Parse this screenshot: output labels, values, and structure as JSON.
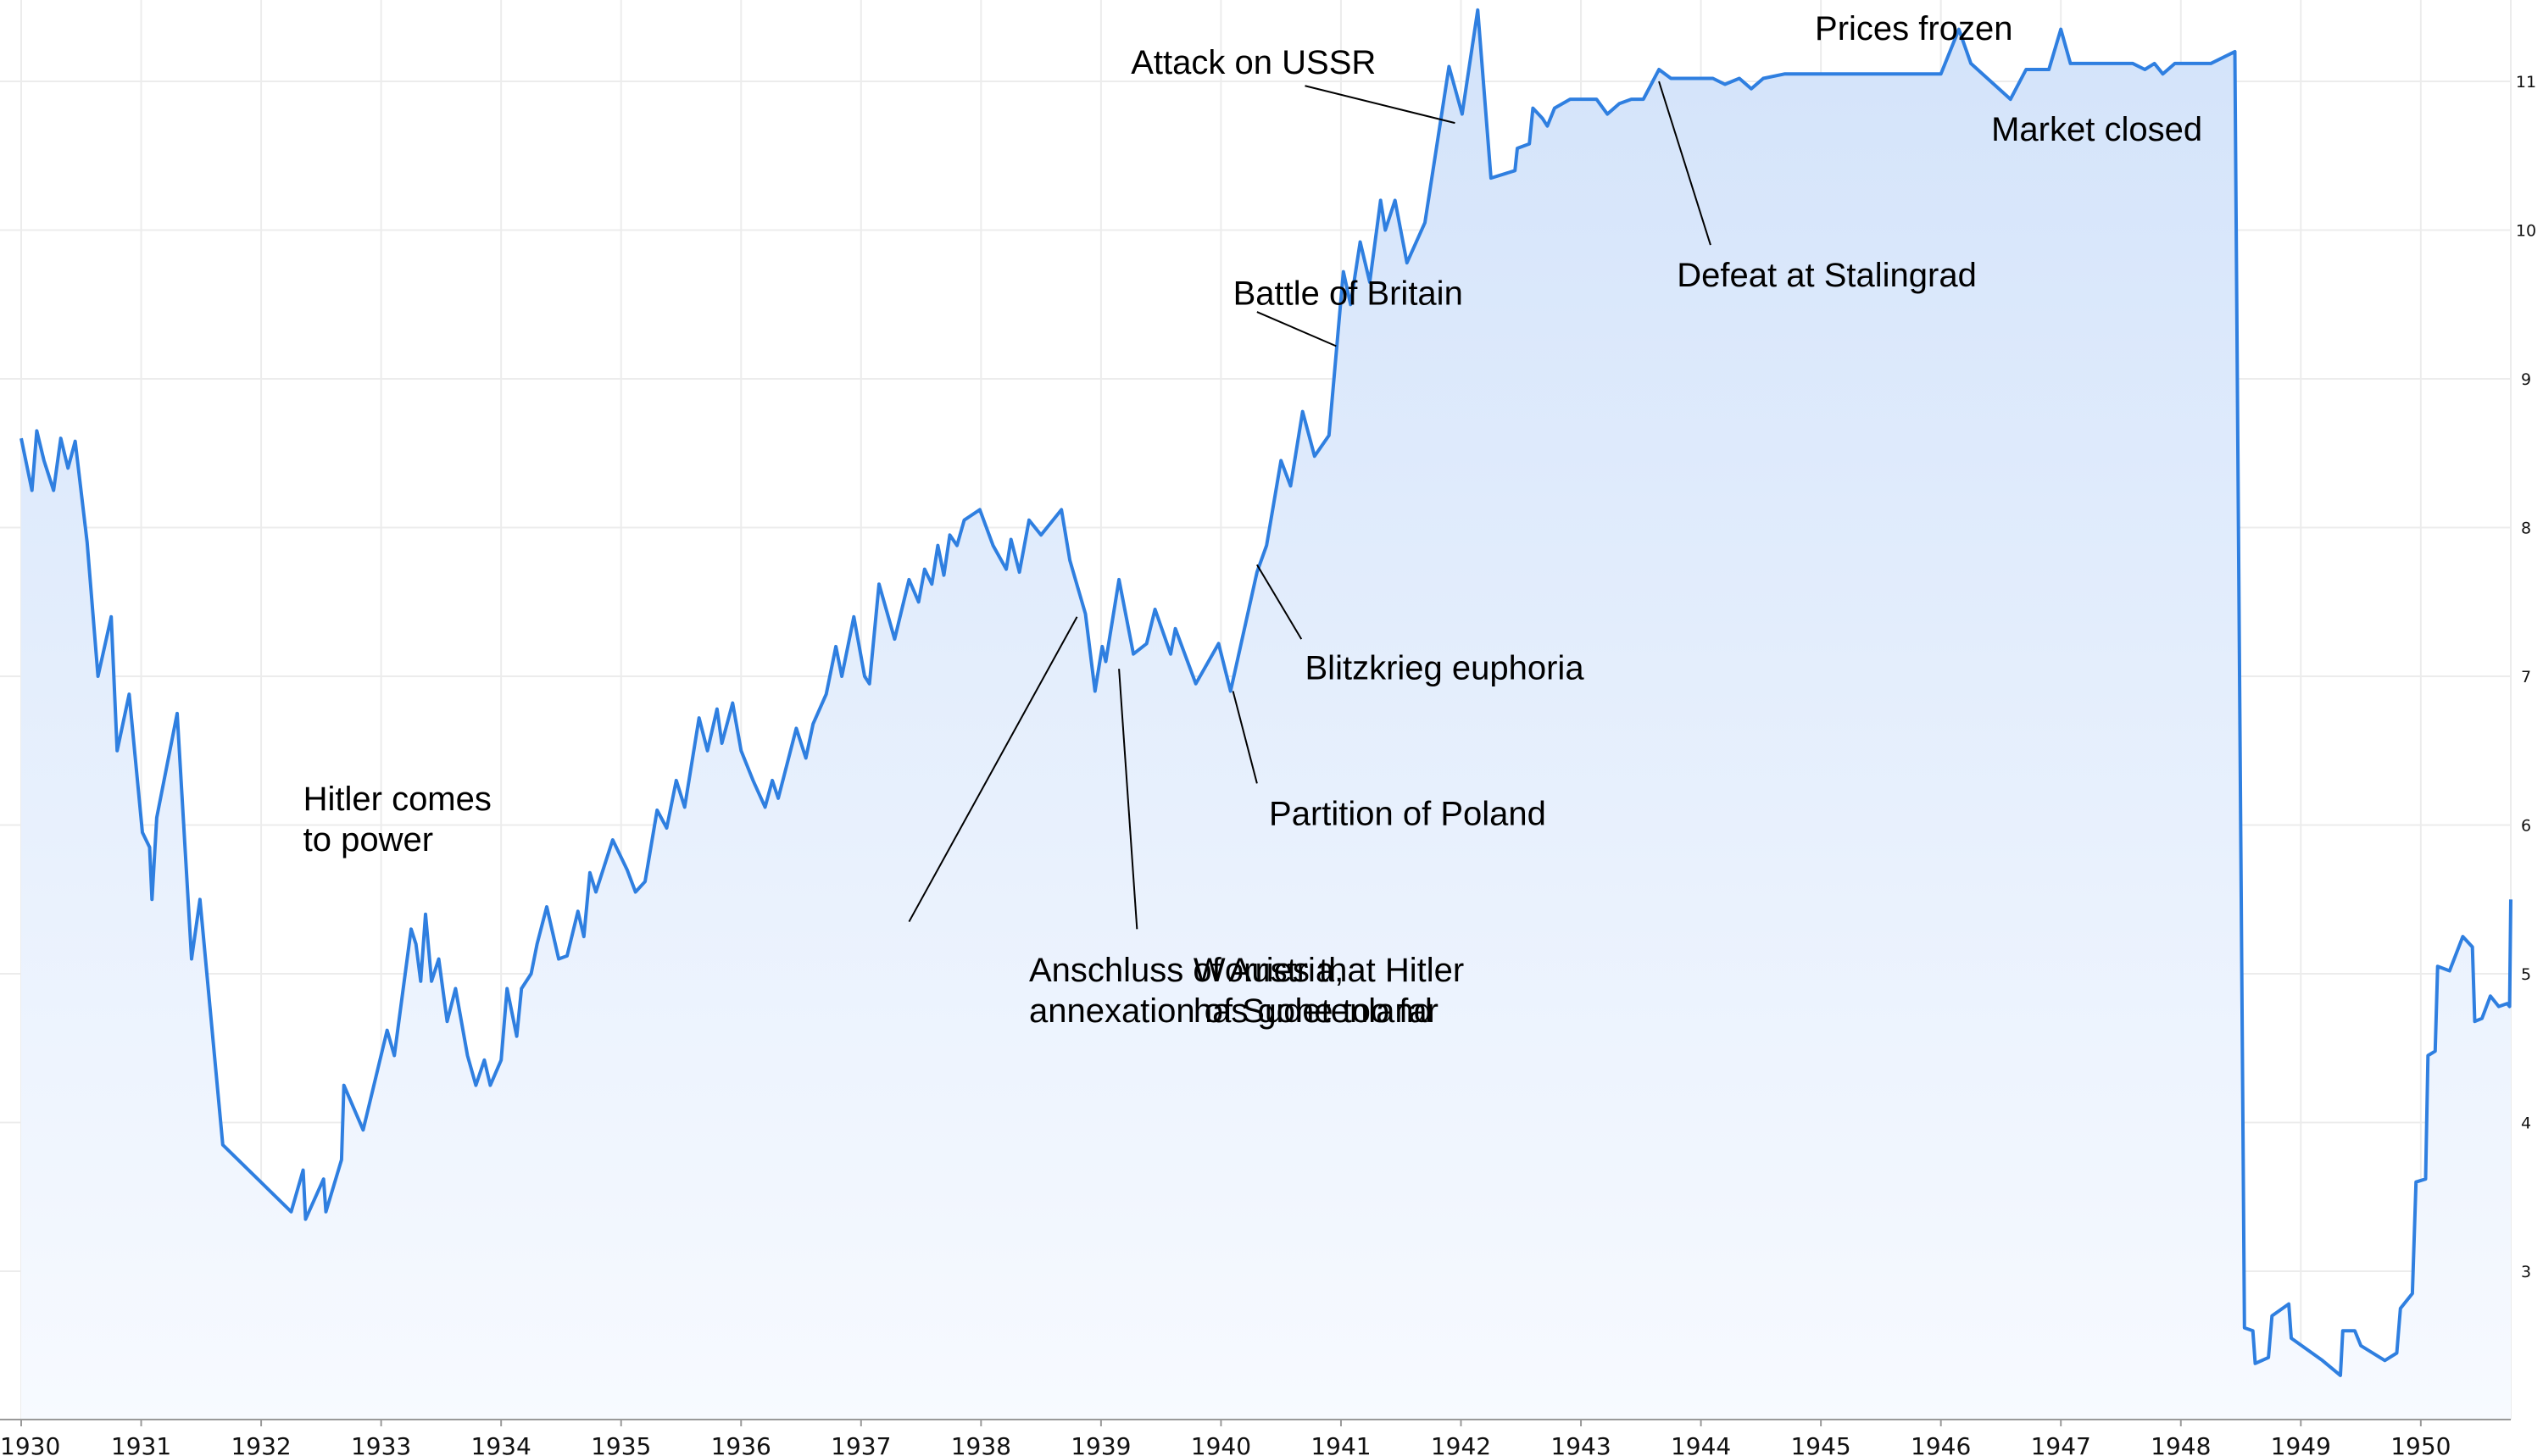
{
  "chart_data": {
    "type": "area",
    "title": "",
    "xlabel": "",
    "ylabel": "",
    "xlim": [
      1930.0,
      1950.75
    ],
    "ylim": [
      2.0,
      11.6
    ],
    "grid": true,
    "line_color": "#2f7fe0",
    "fill_color": "#d6e6fb",
    "x_ticks": [
      "1930",
      "1931",
      "1932",
      "1933",
      "1934",
      "1935",
      "1936",
      "1937",
      "1938",
      "1939",
      "1940",
      "1941",
      "1942",
      "1943",
      "1944",
      "1945",
      "1946",
      "1947",
      "1948",
      "1949",
      "1950"
    ],
    "y_ticks": [
      "3",
      "4",
      "5",
      "6",
      "7",
      "8",
      "9",
      "10",
      "11"
    ],
    "series": [
      {
        "name": "",
        "points": [
          [
            1930.0,
            8.6
          ],
          [
            1930.09,
            8.25
          ],
          [
            1930.13,
            8.65
          ],
          [
            1930.19,
            8.45
          ],
          [
            1930.27,
            8.25
          ],
          [
            1930.33,
            8.6
          ],
          [
            1930.39,
            8.4
          ],
          [
            1930.45,
            8.58
          ],
          [
            1930.55,
            7.9
          ],
          [
            1930.64,
            7.0
          ],
          [
            1930.75,
            7.4
          ],
          [
            1930.8,
            6.5
          ],
          [
            1930.9,
            6.88
          ],
          [
            1931.01,
            5.95
          ],
          [
            1931.07,
            5.85
          ],
          [
            1931.09,
            5.5
          ],
          [
            1931.13,
            6.05
          ],
          [
            1931.3,
            6.75
          ],
          [
            1931.42,
            5.1
          ],
          [
            1931.49,
            5.5
          ],
          [
            1931.68,
            3.85
          ],
          [
            1932.25,
            3.4
          ],
          [
            1932.35,
            3.68
          ],
          [
            1932.37,
            3.35
          ],
          [
            1932.52,
            3.62
          ],
          [
            1932.54,
            3.4
          ],
          [
            1932.67,
            3.75
          ],
          [
            1932.69,
            4.25
          ],
          [
            1932.85,
            3.95
          ],
          [
            1933.05,
            4.62
          ],
          [
            1933.11,
            4.45
          ],
          [
            1933.25,
            5.3
          ],
          [
            1933.29,
            5.2
          ],
          [
            1933.33,
            4.95
          ],
          [
            1933.37,
            5.4
          ],
          [
            1933.42,
            4.95
          ],
          [
            1933.48,
            5.1
          ],
          [
            1933.55,
            4.68
          ],
          [
            1933.62,
            4.9
          ],
          [
            1933.72,
            4.45
          ],
          [
            1933.79,
            4.25
          ],
          [
            1933.86,
            4.42
          ],
          [
            1933.91,
            4.25
          ],
          [
            1934.0,
            4.42
          ],
          [
            1934.05,
            4.9
          ],
          [
            1934.13,
            4.58
          ],
          [
            1934.17,
            4.9
          ],
          [
            1934.25,
            5.0
          ],
          [
            1934.3,
            5.2
          ],
          [
            1934.38,
            5.45
          ],
          [
            1934.48,
            5.1
          ],
          [
            1934.55,
            5.12
          ],
          [
            1934.64,
            5.42
          ],
          [
            1934.69,
            5.25
          ],
          [
            1934.74,
            5.68
          ],
          [
            1934.79,
            5.55
          ],
          [
            1934.93,
            5.9
          ],
          [
            1935.05,
            5.7
          ],
          [
            1935.12,
            5.55
          ],
          [
            1935.2,
            5.62
          ],
          [
            1935.3,
            6.1
          ],
          [
            1935.38,
            5.98
          ],
          [
            1935.46,
            6.3
          ],
          [
            1935.53,
            6.12
          ],
          [
            1935.65,
            6.72
          ],
          [
            1935.72,
            6.5
          ],
          [
            1935.8,
            6.78
          ],
          [
            1935.84,
            6.55
          ],
          [
            1935.93,
            6.82
          ],
          [
            1936.0,
            6.5
          ],
          [
            1936.1,
            6.3
          ],
          [
            1936.2,
            6.12
          ],
          [
            1936.26,
            6.3
          ],
          [
            1936.31,
            6.18
          ],
          [
            1936.46,
            6.65
          ],
          [
            1936.54,
            6.45
          ],
          [
            1936.6,
            6.68
          ],
          [
            1936.71,
            6.88
          ],
          [
            1936.79,
            7.2
          ],
          [
            1936.84,
            7.0
          ],
          [
            1936.94,
            7.4
          ],
          [
            1937.03,
            7.0
          ],
          [
            1937.07,
            6.95
          ],
          [
            1937.15,
            7.62
          ],
          [
            1937.28,
            7.25
          ],
          [
            1937.4,
            7.65
          ],
          [
            1937.48,
            7.5
          ],
          [
            1937.53,
            7.72
          ],
          [
            1937.59,
            7.62
          ],
          [
            1937.64,
            7.88
          ],
          [
            1937.69,
            7.68
          ],
          [
            1937.74,
            7.95
          ],
          [
            1937.8,
            7.88
          ],
          [
            1937.86,
            8.05
          ],
          [
            1937.99,
            8.12
          ],
          [
            1938.1,
            7.88
          ],
          [
            1938.21,
            7.72
          ],
          [
            1938.25,
            7.92
          ],
          [
            1938.32,
            7.7
          ],
          [
            1938.4,
            8.05
          ],
          [
            1938.5,
            7.95
          ],
          [
            1938.67,
            8.12
          ],
          [
            1938.74,
            7.78
          ],
          [
            1938.87,
            7.42
          ],
          [
            1938.95,
            6.9
          ],
          [
            1939.01,
            7.2
          ],
          [
            1939.04,
            7.1
          ],
          [
            1939.15,
            7.65
          ],
          [
            1939.27,
            7.15
          ],
          [
            1939.38,
            7.22
          ],
          [
            1939.45,
            7.45
          ],
          [
            1939.58,
            7.15
          ],
          [
            1939.62,
            7.32
          ],
          [
            1939.79,
            6.95
          ],
          [
            1939.98,
            7.22
          ],
          [
            1940.08,
            6.9
          ],
          [
            1940.3,
            7.7
          ],
          [
            1940.38,
            7.88
          ],
          [
            1940.5,
            8.45
          ],
          [
            1940.58,
            8.28
          ],
          [
            1940.68,
            8.78
          ],
          [
            1940.78,
            8.48
          ],
          [
            1940.9,
            8.62
          ],
          [
            1941.02,
            9.72
          ],
          [
            1941.08,
            9.5
          ],
          [
            1941.16,
            9.92
          ],
          [
            1941.24,
            9.65
          ],
          [
            1941.33,
            10.2
          ],
          [
            1941.37,
            10.0
          ],
          [
            1941.45,
            10.2
          ],
          [
            1941.55,
            9.78
          ],
          [
            1941.7,
            10.05
          ],
          [
            1941.9,
            11.1
          ],
          [
            1942.01,
            10.78
          ],
          [
            1942.14,
            11.48
          ],
          [
            1942.25,
            10.35
          ],
          [
            1942.45,
            10.4
          ],
          [
            1942.47,
            10.55
          ],
          [
            1942.57,
            10.58
          ],
          [
            1942.6,
            10.82
          ],
          [
            1942.68,
            10.75
          ],
          [
            1942.72,
            10.7
          ],
          [
            1942.78,
            10.82
          ],
          [
            1942.91,
            10.88
          ],
          [
            1943.13,
            10.88
          ],
          [
            1943.22,
            10.78
          ],
          [
            1943.32,
            10.85
          ],
          [
            1943.42,
            10.88
          ],
          [
            1943.52,
            10.88
          ],
          [
            1943.65,
            11.08
          ],
          [
            1943.75,
            11.02
          ],
          [
            1944.1,
            11.02
          ],
          [
            1944.2,
            10.98
          ],
          [
            1944.32,
            11.02
          ],
          [
            1944.42,
            10.95
          ],
          [
            1944.52,
            11.02
          ],
          [
            1944.7,
            11.05
          ],
          [
            1946.0,
            11.05
          ],
          [
            1946.15,
            11.35
          ],
          [
            1946.25,
            11.12
          ],
          [
            1946.58,
            10.88
          ],
          [
            1946.71,
            11.08
          ],
          [
            1946.9,
            11.08
          ],
          [
            1947.0,
            11.35
          ],
          [
            1947.08,
            11.12
          ],
          [
            1947.6,
            11.12
          ],
          [
            1947.7,
            11.08
          ],
          [
            1947.78,
            11.12
          ],
          [
            1947.85,
            11.05
          ],
          [
            1947.95,
            11.12
          ],
          [
            1948.25,
            11.12
          ],
          [
            1948.45,
            11.2
          ],
          [
            1948.53,
            2.62
          ],
          [
            1948.6,
            2.6
          ],
          [
            1948.62,
            2.38
          ],
          [
            1948.73,
            2.42
          ],
          [
            1948.76,
            2.7
          ],
          [
            1948.9,
            2.78
          ],
          [
            1948.92,
            2.55
          ],
          [
            1949.18,
            2.4
          ],
          [
            1949.33,
            2.3
          ],
          [
            1949.35,
            2.6
          ],
          [
            1949.45,
            2.6
          ],
          [
            1949.5,
            2.5
          ],
          [
            1949.7,
            2.4
          ],
          [
            1949.8,
            2.45
          ],
          [
            1949.83,
            2.75
          ],
          [
            1949.93,
            2.85
          ],
          [
            1949.96,
            3.6
          ],
          [
            1950.04,
            3.62
          ],
          [
            1950.06,
            4.45
          ],
          [
            1950.12,
            4.48
          ],
          [
            1950.14,
            5.05
          ],
          [
            1950.24,
            5.02
          ],
          [
            1950.35,
            5.25
          ],
          [
            1950.43,
            5.18
          ],
          [
            1950.45,
            4.68
          ],
          [
            1950.51,
            4.7
          ],
          [
            1950.58,
            4.85
          ],
          [
            1950.65,
            4.78
          ],
          [
            1950.72,
            4.8
          ],
          [
            1950.74,
            4.78
          ],
          [
            1950.75,
            5.5
          ]
        ]
      }
    ],
    "annotations": [
      {
        "lines": [
          "Hitler comes",
          "to power"
        ],
        "anchor": [
          1932.35,
          6.1
        ]
      },
      {
        "lines": [
          "Anschluss of Austria,",
          "annexation of Sudetenland"
        ],
        "anchor": [
          1938.4,
          4.95
        ],
        "leader_to": [
          1938.8,
          7.4
        ],
        "leader_from": [
          1937.4,
          5.35
        ]
      },
      {
        "lines": [
          "Worries that Hitler",
          "has gone too far"
        ],
        "anchor": [
          1939.77,
          4.95
        ],
        "leader_to": [
          1939.15,
          7.05
        ],
        "leader_from": [
          1939.3,
          5.3
        ]
      },
      {
        "lines": [
          "Partition of Poland"
        ],
        "anchor": [
          1940.4,
          6.0
        ],
        "leader_to": [
          1940.1,
          6.9
        ],
        "leader_from": [
          1940.3,
          6.28
        ]
      },
      {
        "lines": [
          "Blitzkrieg euphoria"
        ],
        "anchor": [
          1940.7,
          6.98
        ],
        "leader_to": [
          1940.3,
          7.75
        ],
        "leader_from": [
          1940.67,
          7.25
        ]
      },
      {
        "lines": [
          "Battle of Britain"
        ],
        "anchor": [
          1940.1,
          9.5
        ],
        "leader_to": [
          1940.96,
          9.22
        ],
        "leader_from": [
          1940.3,
          9.45
        ]
      },
      {
        "lines": [
          "Attack on USSR"
        ],
        "anchor": [
          1939.25,
          11.05
        ],
        "leader_to": [
          1941.95,
          10.72
        ],
        "leader_from": [
          1940.7,
          10.97
        ]
      },
      {
        "lines": [
          "Defeat at Stalingrad"
        ],
        "anchor": [
          1943.8,
          9.62
        ],
        "leader_to": [
          1943.65,
          11.0
        ],
        "leader_from": [
          1944.08,
          9.9
        ]
      },
      {
        "lines": [
          "Prices frozen"
        ],
        "anchor": [
          1944.95,
          11.28
        ]
      },
      {
        "lines": [
          "Market closed"
        ],
        "anchor": [
          1946.42,
          10.6
        ]
      }
    ]
  }
}
